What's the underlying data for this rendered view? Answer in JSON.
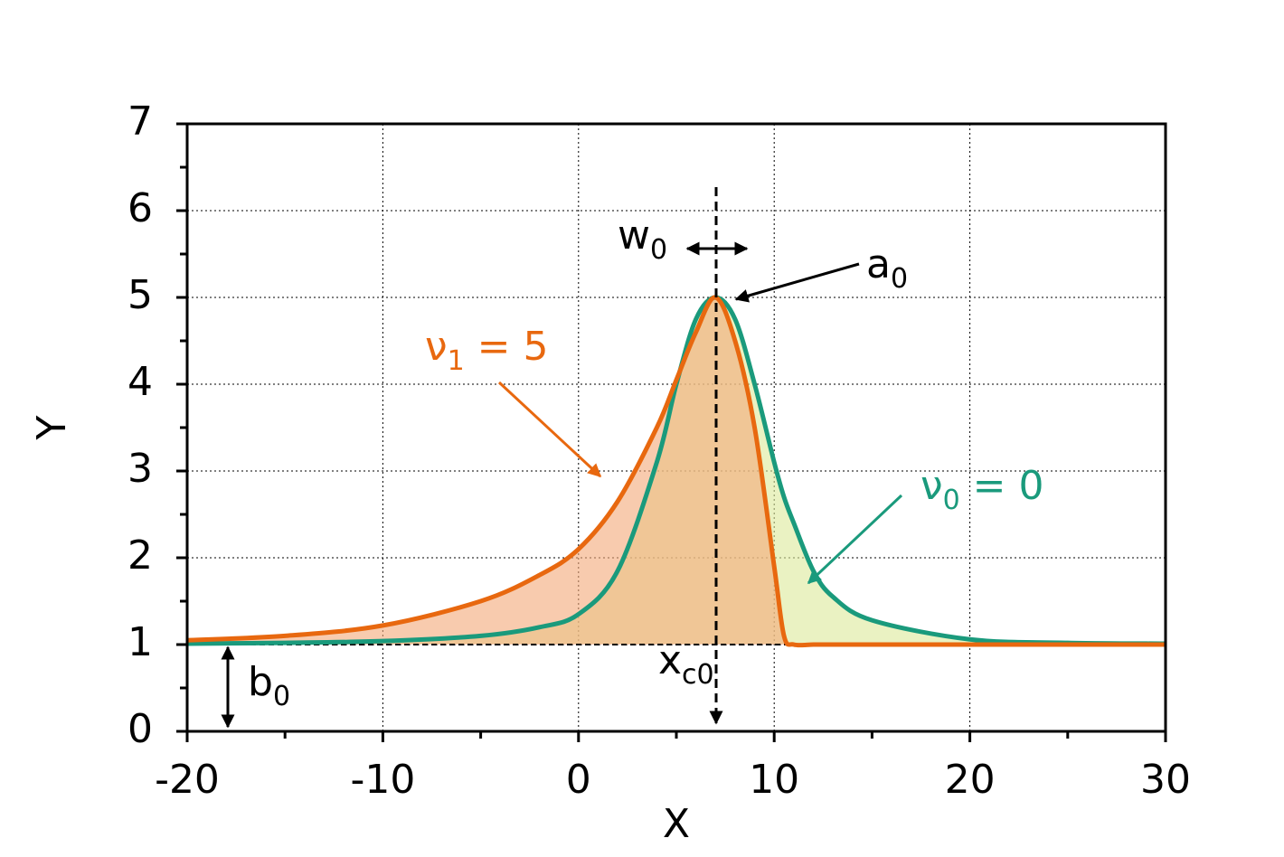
{
  "chart_data": {
    "type": "line",
    "x_label": "X",
    "y_label": "Y",
    "x": [
      -20,
      -15,
      -10,
      -5,
      -2,
      0,
      2,
      4,
      5,
      6,
      7,
      8,
      9,
      10,
      10.5,
      11,
      12,
      13,
      15,
      20,
      25,
      30
    ],
    "series": [
      {
        "name": "ν0 = 0",
        "color": "#1a9a7c",
        "fill_color": "#dce99a",
        "values": [
          1.01,
          1.02,
          1.04,
          1.1,
          1.2,
          1.35,
          1.85,
          3.1,
          4.0,
          4.75,
          5,
          4.75,
          4.0,
          3.1,
          2.7,
          2.4,
          1.85,
          1.55,
          1.28,
          1.06,
          1.02,
          1.01
        ]
      },
      {
        "name": "ν1 = 5",
        "color": "#e8680f",
        "fill_color": "#f3a878",
        "values": [
          1.05,
          1.1,
          1.22,
          1.5,
          1.8,
          2.1,
          2.65,
          3.5,
          4.05,
          4.6,
          5,
          4.5,
          3.5,
          1.9,
          1.1,
          1.0,
          1.0,
          1.0,
          1.0,
          1.0,
          1.0,
          1.0
        ]
      }
    ],
    "xlim": [
      -20,
      30
    ],
    "ylim": [
      0,
      7
    ],
    "xticks": [
      -20,
      -10,
      0,
      10,
      20,
      30
    ],
    "yticks": [
      0,
      1,
      2,
      3,
      4,
      5,
      6,
      7
    ],
    "x_minor_ticks": [
      -15,
      -5,
      5,
      15,
      25
    ],
    "y_minor_ticks": [
      0.5,
      1.5,
      2.5,
      3.5,
      4.5,
      5.5,
      6.5
    ],
    "grid": true,
    "annotations": {
      "w0": {
        "text": "w",
        "sub": "0"
      },
      "a0": {
        "text": "a",
        "sub": "0"
      },
      "b0": {
        "text": "b",
        "sub": "0"
      },
      "xc0": {
        "text": "x",
        "sub": "c0"
      },
      "nu1": {
        "text": "ν",
        "sub": "1",
        "rest": " = 5"
      },
      "nu0": {
        "text": "ν",
        "sub": "0",
        "rest": " = 0"
      }
    }
  }
}
